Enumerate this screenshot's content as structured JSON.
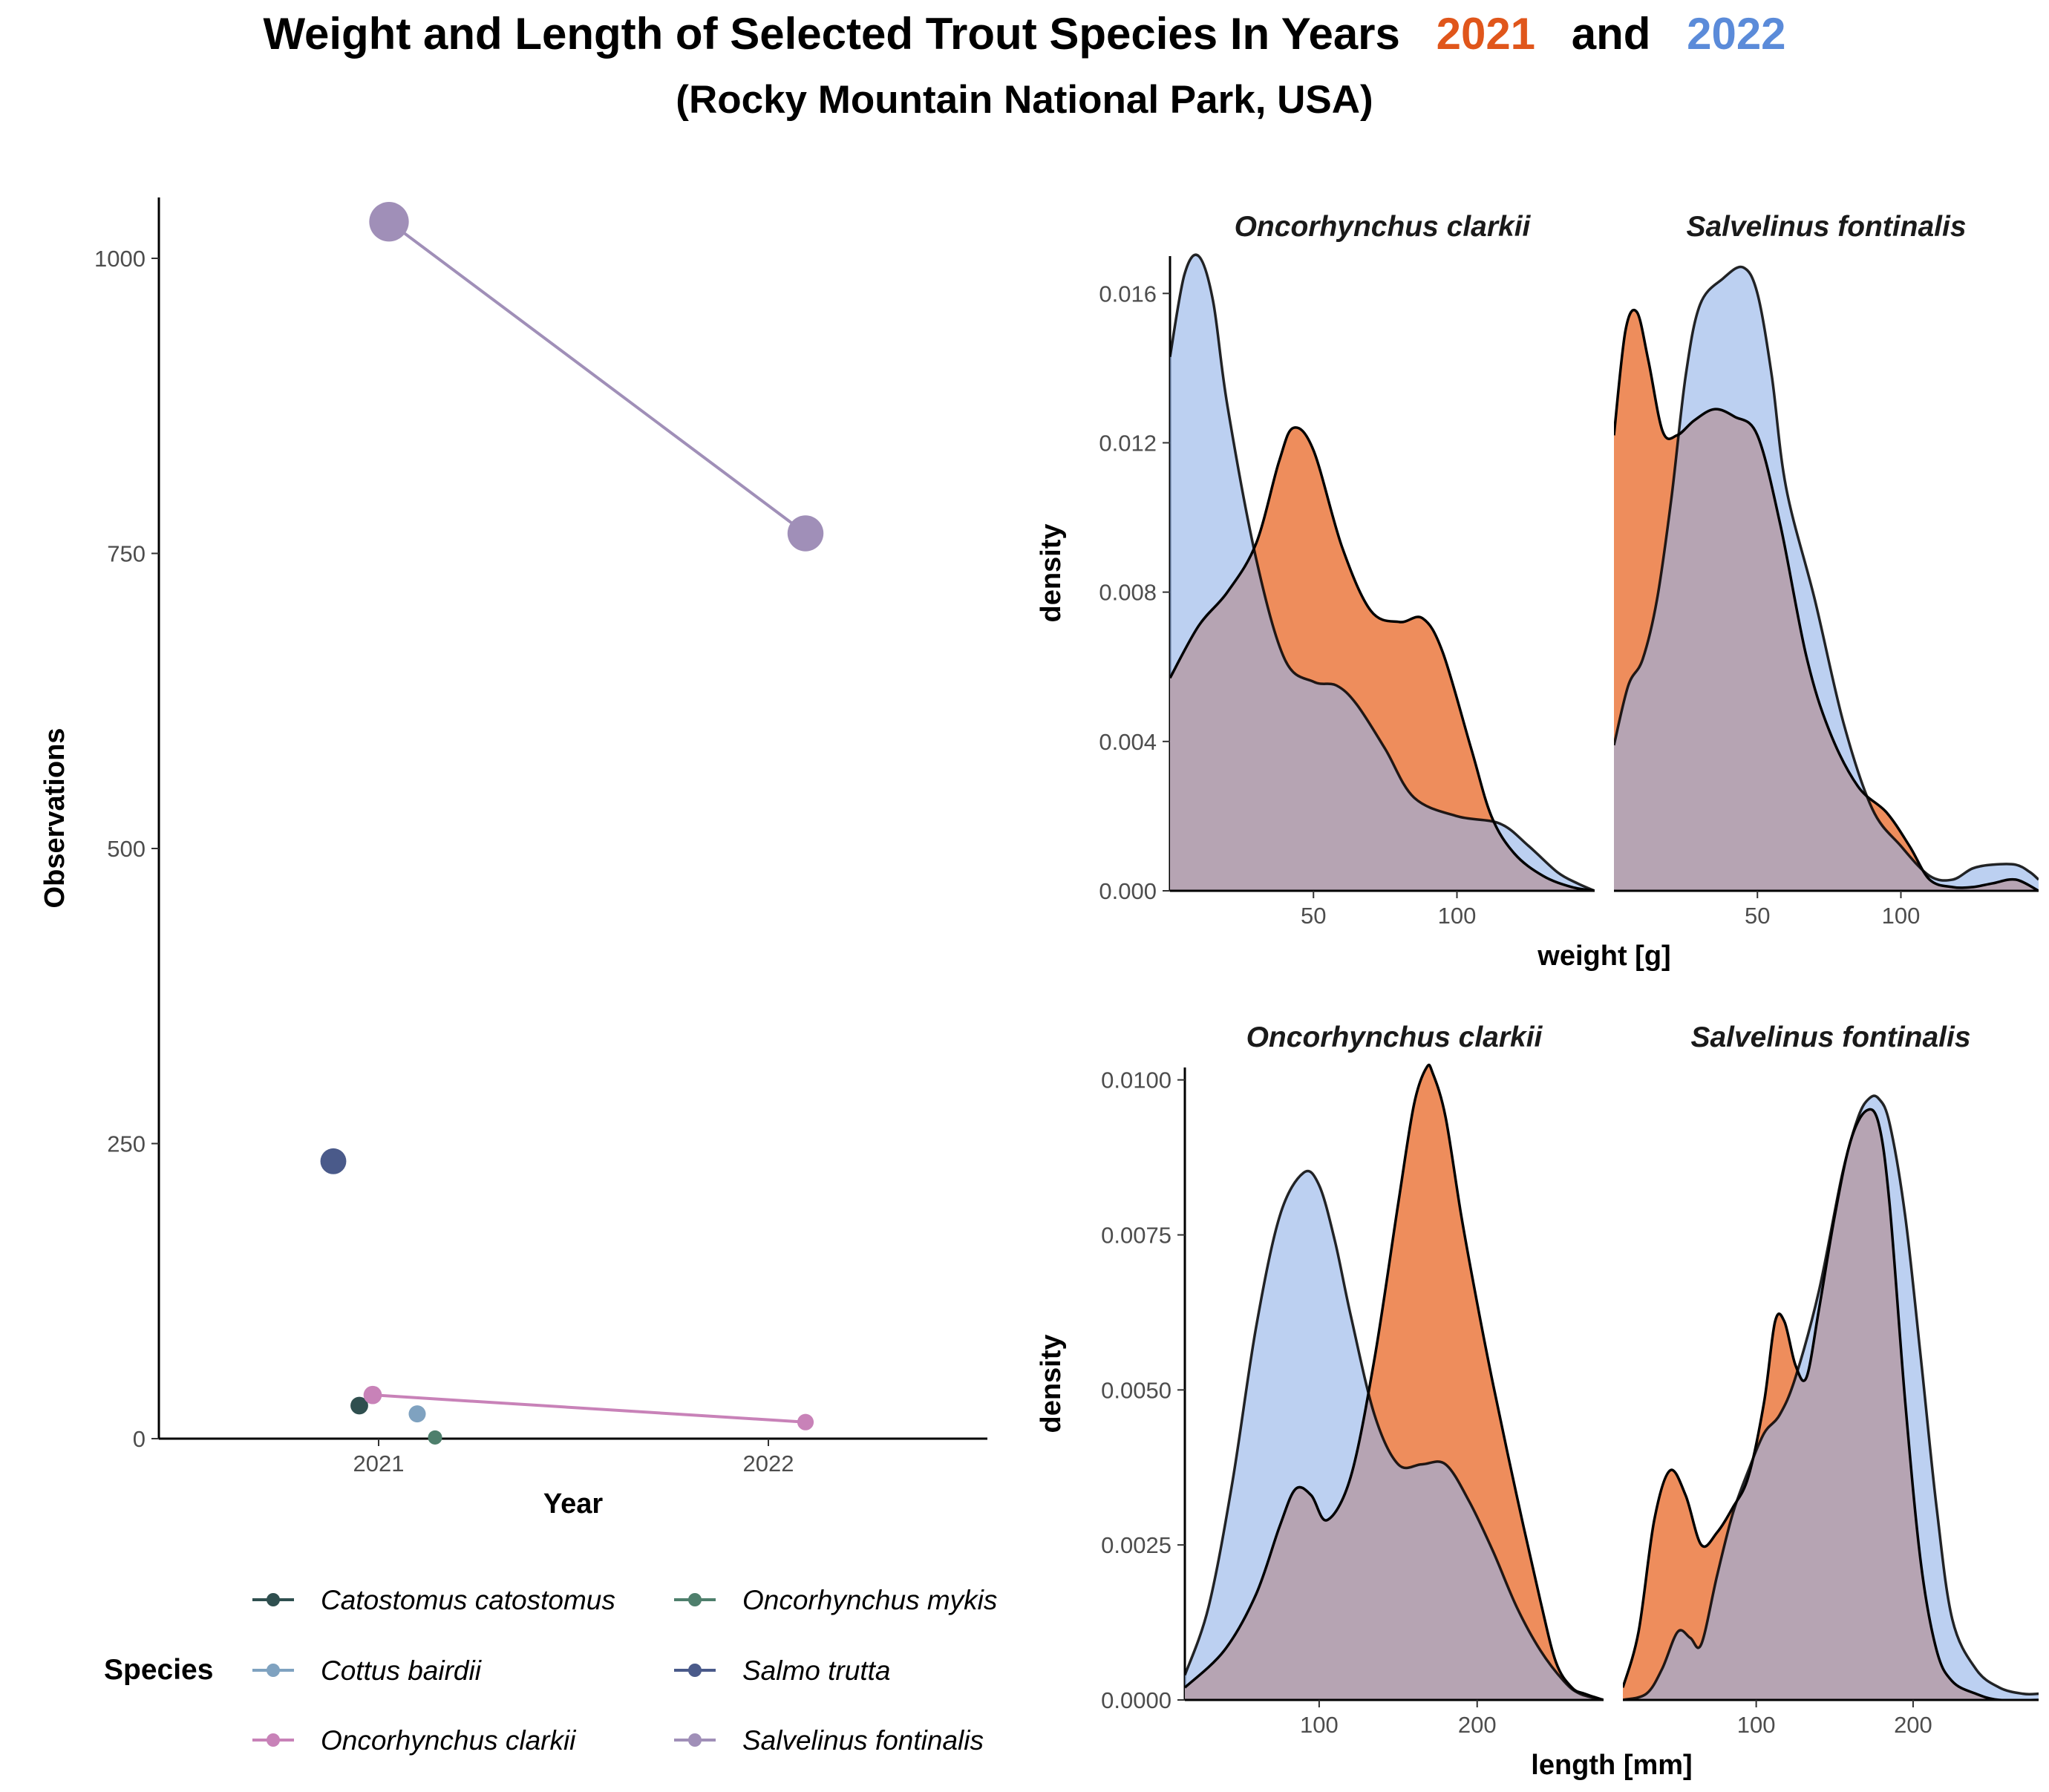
{
  "title": {
    "line1_prefix": "Weight and Length of Selected Trout Species In Years",
    "year_a": "2021",
    "connector": "and",
    "year_b": "2022",
    "line2": "(Rocky Mountain National Park, USA)"
  },
  "colors": {
    "year_2021": "#E0561B",
    "year_2022": "#5B8BD9",
    "density_2021_fill": "#EE8D5C",
    "density_2022_fill": "#93B3E8",
    "density_overlap": "#928CAE",
    "axis": "#000000"
  },
  "legend": {
    "title": "Species",
    "items": [
      {
        "label": "Catostomus catostomus",
        "color": "#2F4F4F"
      },
      {
        "label": "Oncorhynchus mykis",
        "color": "#4E7F6C"
      },
      {
        "label": "Cottus bairdii",
        "color": "#7FA2C0"
      },
      {
        "label": "Salmo trutta",
        "color": "#4A5A8A"
      },
      {
        "label": "Oncorhynchus clarkii",
        "color": "#C882B8"
      },
      {
        "label": "Salvelinus fontinalis",
        "color": "#A08FB8"
      }
    ]
  },
  "chart_data": [
    {
      "type": "line",
      "id": "observations",
      "xlabel": "Year",
      "ylabel": "Observations",
      "x_categories": [
        "2021",
        "2022"
      ],
      "ylim": [
        0,
        1050
      ],
      "yticks": [
        0,
        250,
        500,
        750,
        1000
      ],
      "point_size_encodes": "Observations",
      "series": [
        {
          "name": "Catostomus catostomus",
          "color": "#2F4F4F",
          "points": [
            {
              "year": "2021",
              "value": 28
            }
          ]
        },
        {
          "name": "Oncorhynchus mykis",
          "color": "#4E7F6C",
          "points": [
            {
              "year": "2021",
              "value": 1
            }
          ]
        },
        {
          "name": "Cottus bairdii",
          "color": "#7FA2C0",
          "points": [
            {
              "year": "2021",
              "value": 21
            }
          ]
        },
        {
          "name": "Salmo trutta",
          "color": "#4A5A8A",
          "points": [
            {
              "year": "2021",
              "value": 235
            }
          ]
        },
        {
          "name": "Oncorhynchus clarkii",
          "color": "#C882B8",
          "points": [
            {
              "year": "2021",
              "value": 37
            },
            {
              "year": "2022",
              "value": 14
            }
          ]
        },
        {
          "name": "Salvelinus fontinalis",
          "color": "#A08FB8",
          "points": [
            {
              "year": "2021",
              "value": 1031
            },
            {
              "year": "2022",
              "value": 767
            }
          ]
        }
      ]
    },
    {
      "type": "area",
      "id": "weight-density",
      "xlabel": "weight [g]",
      "ylabel": "density",
      "ylim": [
        0,
        0.017
      ],
      "yticks": [
        0.0,
        0.004,
        0.008,
        0.012,
        0.016
      ],
      "ytick_labels": [
        "0.000",
        "0.004",
        "0.008",
        "0.012",
        "0.016"
      ],
      "xticks": [
        50,
        100
      ],
      "panels": [
        {
          "facet": "Oncorhynchus clarkii",
          "xlim": [
            0,
            148
          ],
          "series": [
            {
              "name": "2021",
              "x": [
                0,
                10,
                20,
                30,
                38,
                43,
                50,
                60,
                70,
                80,
                88,
                95,
                105,
                112,
                120,
                130,
                140,
                148
              ],
              "y": [
                0.0057,
                0.0071,
                0.008,
                0.0093,
                0.0115,
                0.0124,
                0.0118,
                0.0092,
                0.0075,
                0.0072,
                0.0073,
                0.0064,
                0.0038,
                0.002,
                0.001,
                0.0004,
                0.0001,
                0.0
              ]
            },
            {
              "name": "2022",
              "x": [
                0,
                5,
                10,
                15,
                20,
                30,
                40,
                50,
                58,
                65,
                75,
                85,
                100,
                115,
                125,
                135,
                142,
                148
              ],
              "y": [
                0.0143,
                0.0165,
                0.017,
                0.0158,
                0.013,
                0.0089,
                0.0062,
                0.0056,
                0.0055,
                0.005,
                0.0038,
                0.0025,
                0.002,
                0.0018,
                0.0012,
                0.0005,
                0.0002,
                0.0
              ]
            }
          ]
        },
        {
          "facet": "Salvelinus fontinalis",
          "xlim": [
            0,
            148
          ],
          "series": [
            {
              "name": "2021",
              "x": [
                0,
                4,
                8,
                12,
                17,
                22,
                28,
                35,
                42,
                50,
                58,
                67,
                75,
                85,
                95,
                103,
                110,
                118,
                125,
                132,
                140,
                148
              ],
              "y": [
                0.0122,
                0.015,
                0.0155,
                0.0142,
                0.0123,
                0.0122,
                0.0126,
                0.0129,
                0.0127,
                0.0122,
                0.0098,
                0.0063,
                0.0043,
                0.0028,
                0.0021,
                0.0012,
                0.0003,
                0.0001,
                0.0001,
                0.0002,
                0.0003,
                0.0
              ]
            },
            {
              "name": "2022",
              "x": [
                0,
                5,
                10,
                15,
                20,
                25,
                30,
                38,
                45,
                50,
                55,
                60,
                70,
                80,
                90,
                100,
                110,
                118,
                125,
                132,
                140,
                145,
                148
              ],
              "y": [
                0.0039,
                0.0055,
                0.0062,
                0.0078,
                0.0105,
                0.0138,
                0.0157,
                0.0164,
                0.0167,
                0.016,
                0.0138,
                0.0108,
                0.0078,
                0.0045,
                0.0022,
                0.0012,
                0.0004,
                0.0003,
                0.0006,
                0.0007,
                0.0007,
                0.0005,
                0.0003
              ]
            }
          ]
        }
      ]
    },
    {
      "type": "area",
      "id": "length-density",
      "xlabel": "length [mm]",
      "ylabel": "density",
      "ylim": [
        0,
        0.0102
      ],
      "yticks": [
        0.0,
        0.0025,
        0.005,
        0.0075,
        0.01
      ],
      "ytick_labels": [
        "0.0000",
        "0.0025",
        "0.0050",
        "0.0075",
        "0.0100"
      ],
      "xticks": [
        100,
        200
      ],
      "panels": [
        {
          "facet": "Oncorhynchus clarkii",
          "xlim": [
            15,
            280
          ],
          "series": [
            {
              "name": "2021",
              "x": [
                15,
                40,
                60,
                75,
                85,
                95,
                105,
                120,
                135,
                150,
                160,
                168,
                172,
                180,
                190,
                200,
                210,
                225,
                240,
                250,
                260,
                268,
                280
              ],
              "y": [
                0.0002,
                0.0008,
                0.0017,
                0.0028,
                0.0034,
                0.0033,
                0.0029,
                0.0036,
                0.0055,
                0.008,
                0.0096,
                0.0102,
                0.0101,
                0.0094,
                0.0078,
                0.0064,
                0.0051,
                0.0033,
                0.0016,
                0.0006,
                0.0002,
                0.0001,
                0.0
              ]
            },
            {
              "name": "2022",
              "x": [
                15,
                30,
                45,
                60,
                75,
                90,
                100,
                110,
                120,
                135,
                150,
                165,
                180,
                195,
                210,
                225,
                240,
                255,
                265,
                280
              ],
              "y": [
                0.0004,
                0.0015,
                0.0035,
                0.006,
                0.0078,
                0.0085,
                0.0083,
                0.0074,
                0.0062,
                0.0046,
                0.0038,
                0.0038,
                0.0038,
                0.0032,
                0.0024,
                0.0015,
                0.0008,
                0.0003,
                0.0001,
                0.0
              ]
            }
          ]
        },
        {
          "facet": "Salvelinus fontinalis",
          "xlim": [
            15,
            280
          ],
          "series": [
            {
              "name": "2021",
              "x": [
                15,
                25,
                35,
                45,
                55,
                65,
                75,
                85,
                95,
                105,
                112,
                118,
                125,
                132,
                140,
                150,
                160,
                170,
                178,
                185,
                195,
                205,
                215,
                225,
                240,
                255,
                280
              ],
              "y": [
                0.0002,
                0.0011,
                0.0029,
                0.0037,
                0.0033,
                0.0025,
                0.0027,
                0.0031,
                0.0036,
                0.0048,
                0.0061,
                0.0061,
                0.0054,
                0.0052,
                0.0063,
                0.0078,
                0.009,
                0.0095,
                0.0093,
                0.008,
                0.0048,
                0.0022,
                0.0008,
                0.0003,
                0.0001,
                0.0,
                0.0
              ]
            },
            {
              "name": "2022",
              "x": [
                15,
                30,
                40,
                50,
                58,
                65,
                75,
                85,
                95,
                105,
                115,
                125,
                140,
                155,
                165,
                172,
                178,
                185,
                195,
                205,
                215,
                225,
                240,
                255,
                270,
                280
              ],
              "y": [
                0.0,
                0.0001,
                0.0005,
                0.0011,
                0.001,
                0.0009,
                0.002,
                0.003,
                0.0037,
                0.0043,
                0.0046,
                0.0052,
                0.0066,
                0.0085,
                0.0094,
                0.0097,
                0.0097,
                0.0093,
                0.0078,
                0.0055,
                0.0031,
                0.0013,
                0.0005,
                0.0002,
                0.0001,
                0.0001
              ]
            }
          ]
        }
      ]
    }
  ]
}
